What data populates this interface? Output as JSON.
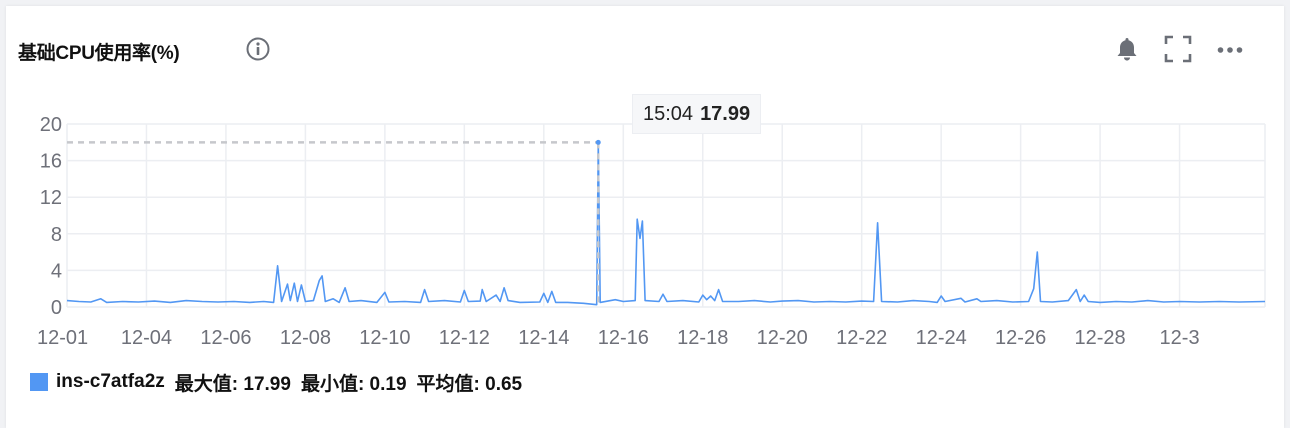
{
  "title": "基础CPU使用率(%)",
  "icons": {
    "info": "info-circle-icon",
    "bell": "bell-icon",
    "fullscreen": "fullscreen-icon",
    "more": "more-horizontal-icon"
  },
  "colors": {
    "series": "#5297f3",
    "grid": "#eceef2",
    "axis_text": "#6e7079",
    "crosshair": "#c6c8cc",
    "icon": "#6b6f77"
  },
  "tooltip": {
    "time": "15:04",
    "value": "17.99"
  },
  "legend": {
    "name": "ins-c7atfa2z",
    "max": "最大值: 17.99",
    "min": "最小值: 0.19",
    "avg": "平均值: 0.65"
  },
  "chart_data": {
    "type": "line",
    "xlabel": "",
    "ylabel": "",
    "ylim": [
      0,
      20
    ],
    "yticks": [
      0,
      4,
      8,
      12,
      16,
      20
    ],
    "xlim": [
      1,
      31.15
    ],
    "xticks": [
      {
        "label": "12-01",
        "day": 1
      },
      {
        "label": "12-04",
        "day": 3
      },
      {
        "label": "12-06",
        "day": 5
      },
      {
        "label": "12-08",
        "day": 7
      },
      {
        "label": "12-10",
        "day": 9
      },
      {
        "label": "12-12",
        "day": 11
      },
      {
        "label": "12-14",
        "day": 13
      },
      {
        "label": "12-16",
        "day": 15
      },
      {
        "label": "12-18",
        "day": 17
      },
      {
        "label": "12-20",
        "day": 19
      },
      {
        "label": "12-22",
        "day": 21
      },
      {
        "label": "12-24",
        "day": 23
      },
      {
        "label": "12-26",
        "day": 25
      },
      {
        "label": "12-28",
        "day": 27
      },
      {
        "label": "12-3",
        "day": 29
      }
    ],
    "grid": true,
    "legend_position": "bottom-left",
    "highlight": {
      "day": 14.37,
      "value": 17.99
    },
    "series": [
      {
        "name": "ins-c7atfa2z",
        "points": [
          [
            1.0,
            0.7
          ],
          [
            1.3,
            0.6
          ],
          [
            1.6,
            0.55
          ],
          [
            1.85,
            0.9
          ],
          [
            2.0,
            0.5
          ],
          [
            2.4,
            0.6
          ],
          [
            2.8,
            0.55
          ],
          [
            3.2,
            0.65
          ],
          [
            3.6,
            0.5
          ],
          [
            4.0,
            0.7
          ],
          [
            4.4,
            0.6
          ],
          [
            4.8,
            0.55
          ],
          [
            5.2,
            0.6
          ],
          [
            5.6,
            0.5
          ],
          [
            5.95,
            0.6
          ],
          [
            6.2,
            0.5
          ],
          [
            6.3,
            4.5
          ],
          [
            6.4,
            0.6
          ],
          [
            6.55,
            2.5
          ],
          [
            6.62,
            0.7
          ],
          [
            6.72,
            2.6
          ],
          [
            6.8,
            0.6
          ],
          [
            6.9,
            2.4
          ],
          [
            7.0,
            0.6
          ],
          [
            7.2,
            0.7
          ],
          [
            7.35,
            2.9
          ],
          [
            7.42,
            3.4
          ],
          [
            7.5,
            0.6
          ],
          [
            7.7,
            0.9
          ],
          [
            7.85,
            0.5
          ],
          [
            8.0,
            2.1
          ],
          [
            8.1,
            0.6
          ],
          [
            8.4,
            0.7
          ],
          [
            8.8,
            0.5
          ],
          [
            9.0,
            1.6
          ],
          [
            9.1,
            0.55
          ],
          [
            9.5,
            0.6
          ],
          [
            9.9,
            0.5
          ],
          [
            10.0,
            1.9
          ],
          [
            10.1,
            0.6
          ],
          [
            10.5,
            0.7
          ],
          [
            10.9,
            0.55
          ],
          [
            11.0,
            1.8
          ],
          [
            11.1,
            0.6
          ],
          [
            11.4,
            0.65
          ],
          [
            11.45,
            1.9
          ],
          [
            11.55,
            0.6
          ],
          [
            11.8,
            1.3
          ],
          [
            11.9,
            0.6
          ],
          [
            12.0,
            2.1
          ],
          [
            12.1,
            0.7
          ],
          [
            12.4,
            0.5
          ],
          [
            12.9,
            0.55
          ],
          [
            13.0,
            1.5
          ],
          [
            13.1,
            0.5
          ],
          [
            13.2,
            1.7
          ],
          [
            13.3,
            0.5
          ],
          [
            13.6,
            0.5
          ],
          [
            14.0,
            0.4
          ],
          [
            14.33,
            0.25
          ],
          [
            14.37,
            17.99
          ],
          [
            14.42,
            0.5
          ],
          [
            14.8,
            0.8
          ],
          [
            15.0,
            0.6
          ],
          [
            15.3,
            0.7
          ],
          [
            15.35,
            9.6
          ],
          [
            15.42,
            7.5
          ],
          [
            15.48,
            9.4
          ],
          [
            15.55,
            0.7
          ],
          [
            15.9,
            0.6
          ],
          [
            16.0,
            1.4
          ],
          [
            16.1,
            0.6
          ],
          [
            16.5,
            0.7
          ],
          [
            16.9,
            0.55
          ],
          [
            17.0,
            1.3
          ],
          [
            17.1,
            0.8
          ],
          [
            17.2,
            1.2
          ],
          [
            17.3,
            0.7
          ],
          [
            17.4,
            1.9
          ],
          [
            17.5,
            0.6
          ],
          [
            17.9,
            0.6
          ],
          [
            18.3,
            0.7
          ],
          [
            18.7,
            0.55
          ],
          [
            19.0,
            0.65
          ],
          [
            19.4,
            0.7
          ],
          [
            19.8,
            0.55
          ],
          [
            20.2,
            0.6
          ],
          [
            20.6,
            0.55
          ],
          [
            21.0,
            0.65
          ],
          [
            21.3,
            0.6
          ],
          [
            21.4,
            9.2
          ],
          [
            21.5,
            0.6
          ],
          [
            21.9,
            0.55
          ],
          [
            22.3,
            0.7
          ],
          [
            22.7,
            0.6
          ],
          [
            22.9,
            0.5
          ],
          [
            23.0,
            1.2
          ],
          [
            23.1,
            0.6
          ],
          [
            23.5,
            0.95
          ],
          [
            23.6,
            0.55
          ],
          [
            23.9,
            0.9
          ],
          [
            24.0,
            0.6
          ],
          [
            24.4,
            0.7
          ],
          [
            24.8,
            0.55
          ],
          [
            25.2,
            0.6
          ],
          [
            25.33,
            2.0
          ],
          [
            25.42,
            6.0
          ],
          [
            25.5,
            0.6
          ],
          [
            25.8,
            0.55
          ],
          [
            26.2,
            0.7
          ],
          [
            26.4,
            1.9
          ],
          [
            26.5,
            0.6
          ],
          [
            26.6,
            1.3
          ],
          [
            26.7,
            0.6
          ],
          [
            27.0,
            0.5
          ],
          [
            27.4,
            0.6
          ],
          [
            27.8,
            0.55
          ],
          [
            28.2,
            0.7
          ],
          [
            28.6,
            0.55
          ],
          [
            29.0,
            0.6
          ],
          [
            29.5,
            0.55
          ],
          [
            30.0,
            0.6
          ],
          [
            30.5,
            0.55
          ],
          [
            31.15,
            0.6
          ]
        ]
      }
    ]
  }
}
